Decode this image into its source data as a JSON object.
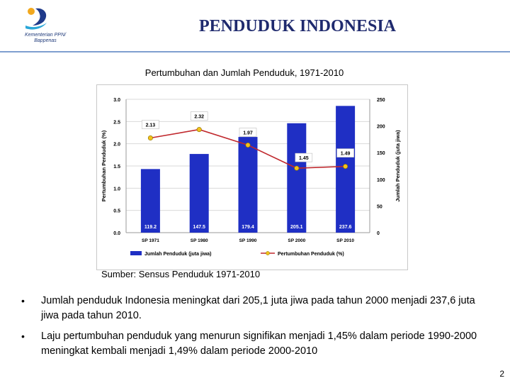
{
  "header": {
    "logo_lines": [
      "Kementerian PPN/",
      "Bappenas"
    ],
    "title": "PENDUDUK INDONESIA"
  },
  "subtitle": "Pertumbuhan dan Jumlah Penduduk, 1971-2010",
  "source": "Sumber: Sensus Penduduk 1971-2010",
  "bullets": [
    "Jumlah penduduk Indonesia meningkat dari 205,1 juta jiwa pada tahun 2000 menjadi 237,6 juta jiwa pada tahun 2010.",
    "Laju pertumbuhan penduduk yang menurun signifikan menjadi 1,45% dalam periode 1990-2000 meningkat kembali menjadi 1,49% dalam periode 2000-2010"
  ],
  "page_number": "2",
  "chart_data": {
    "type": "bar",
    "categories": [
      "SP 1971",
      "SP 1980",
      "SP 1990",
      "SP 2000",
      "SP 2010"
    ],
    "series": [
      {
        "name": "Jumlah Penduduk (juta jiwa)",
        "type": "bar",
        "axis": "right",
        "values": [
          119.2,
          147.5,
          179.4,
          205.1,
          237.6
        ],
        "labels": [
          "119.2",
          "147.5",
          "179.4",
          "205.1",
          "237.6"
        ],
        "color": "#1f2fc4"
      },
      {
        "name": "Pertumbuhan Penduduk (%)",
        "type": "line",
        "axis": "left",
        "values": [
          2.13,
          2.32,
          1.97,
          1.45,
          1.49
        ],
        "labels": [
          "2.13",
          "2.32",
          "1.97",
          "1.45",
          "1.49"
        ],
        "color": "#c0282d",
        "marker_color": "#f2c21a"
      }
    ],
    "ylabel_left": "Pertumbuhan Penduduk (%)",
    "ylabel_right": "Jumlah Penduduk (juta jiwa)",
    "ylim_left": [
      0,
      3
    ],
    "yticks_left": [
      "0.0",
      "0.5",
      "1.0",
      "1.5",
      "2.0",
      "2.5",
      "3.0"
    ],
    "ylim_right": [
      0,
      250
    ],
    "yticks_right": [
      "0",
      "50",
      "100",
      "150",
      "200",
      "250"
    ],
    "grid": true,
    "legend": "bottom"
  }
}
